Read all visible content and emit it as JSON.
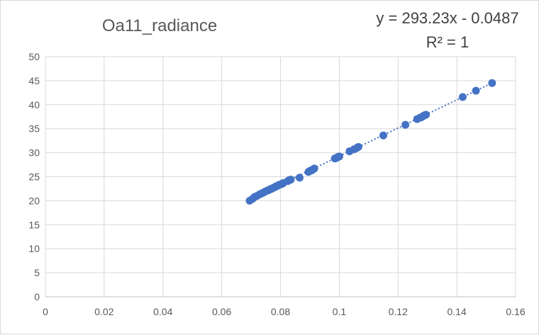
{
  "chart_data": {
    "type": "scatter",
    "title": "Oa11_radiance",
    "xlabel": "",
    "ylabel": "",
    "xlim": [
      0,
      0.16
    ],
    "ylim": [
      0,
      50
    ],
    "xticks": [
      0,
      0.02,
      0.04,
      0.06,
      0.08,
      0.1,
      0.12,
      0.14,
      0.16
    ],
    "xtick_labels": [
      "0",
      "0.02",
      "0.04",
      "0.06",
      "0.08",
      "0.1",
      "0.12",
      "0.14",
      "0.16"
    ],
    "yticks": [
      0,
      5,
      10,
      15,
      20,
      25,
      30,
      35,
      40,
      45,
      50
    ],
    "ytick_labels": [
      "0",
      "5",
      "10",
      "15",
      "20",
      "25",
      "30",
      "35",
      "40",
      "45",
      "50"
    ],
    "grid": true,
    "legend": "none",
    "marker_color": "#4472C4",
    "trendline": {
      "type": "linear",
      "equation": "y = 293.23x - 0.0487",
      "r_squared": "R² = 1",
      "slope": 293.23,
      "intercept": -0.0487,
      "style": "dotted",
      "color": "#4472C4"
    },
    "series": [
      {
        "x": [
          0.0695,
          0.0705,
          0.0712,
          0.072,
          0.0728,
          0.0735,
          0.0742,
          0.0748,
          0.0755,
          0.076,
          0.0765,
          0.077,
          0.0776,
          0.078,
          0.0785,
          0.079,
          0.0795,
          0.08,
          0.0805,
          0.081,
          0.0825,
          0.083,
          0.0835,
          0.0865,
          0.0895,
          0.09,
          0.0905,
          0.091,
          0.0915,
          0.0985,
          0.099,
          0.0995,
          0.1,
          0.1035,
          0.105,
          0.106,
          0.1065,
          0.115,
          0.1225,
          0.1265,
          0.1275,
          0.128,
          0.1285,
          0.129,
          0.1295,
          0.142,
          0.1465,
          0.152
        ],
        "y": [
          20.0,
          20.4,
          20.8,
          21.0,
          21.3,
          21.5,
          21.7,
          21.9,
          22.1,
          22.2,
          22.4,
          22.5,
          22.7,
          22.8,
          23.0,
          23.1,
          23.3,
          23.4,
          23.5,
          23.7,
          24.1,
          24.3,
          24.4,
          24.8,
          26.0,
          26.2,
          26.3,
          26.5,
          26.7,
          28.8,
          28.9,
          29.1,
          29.2,
          30.3,
          30.7,
          31.0,
          31.2,
          33.6,
          35.8,
          37.0,
          37.3,
          37.4,
          37.6,
          37.8,
          37.9,
          41.6,
          42.9,
          44.5
        ]
      }
    ]
  }
}
